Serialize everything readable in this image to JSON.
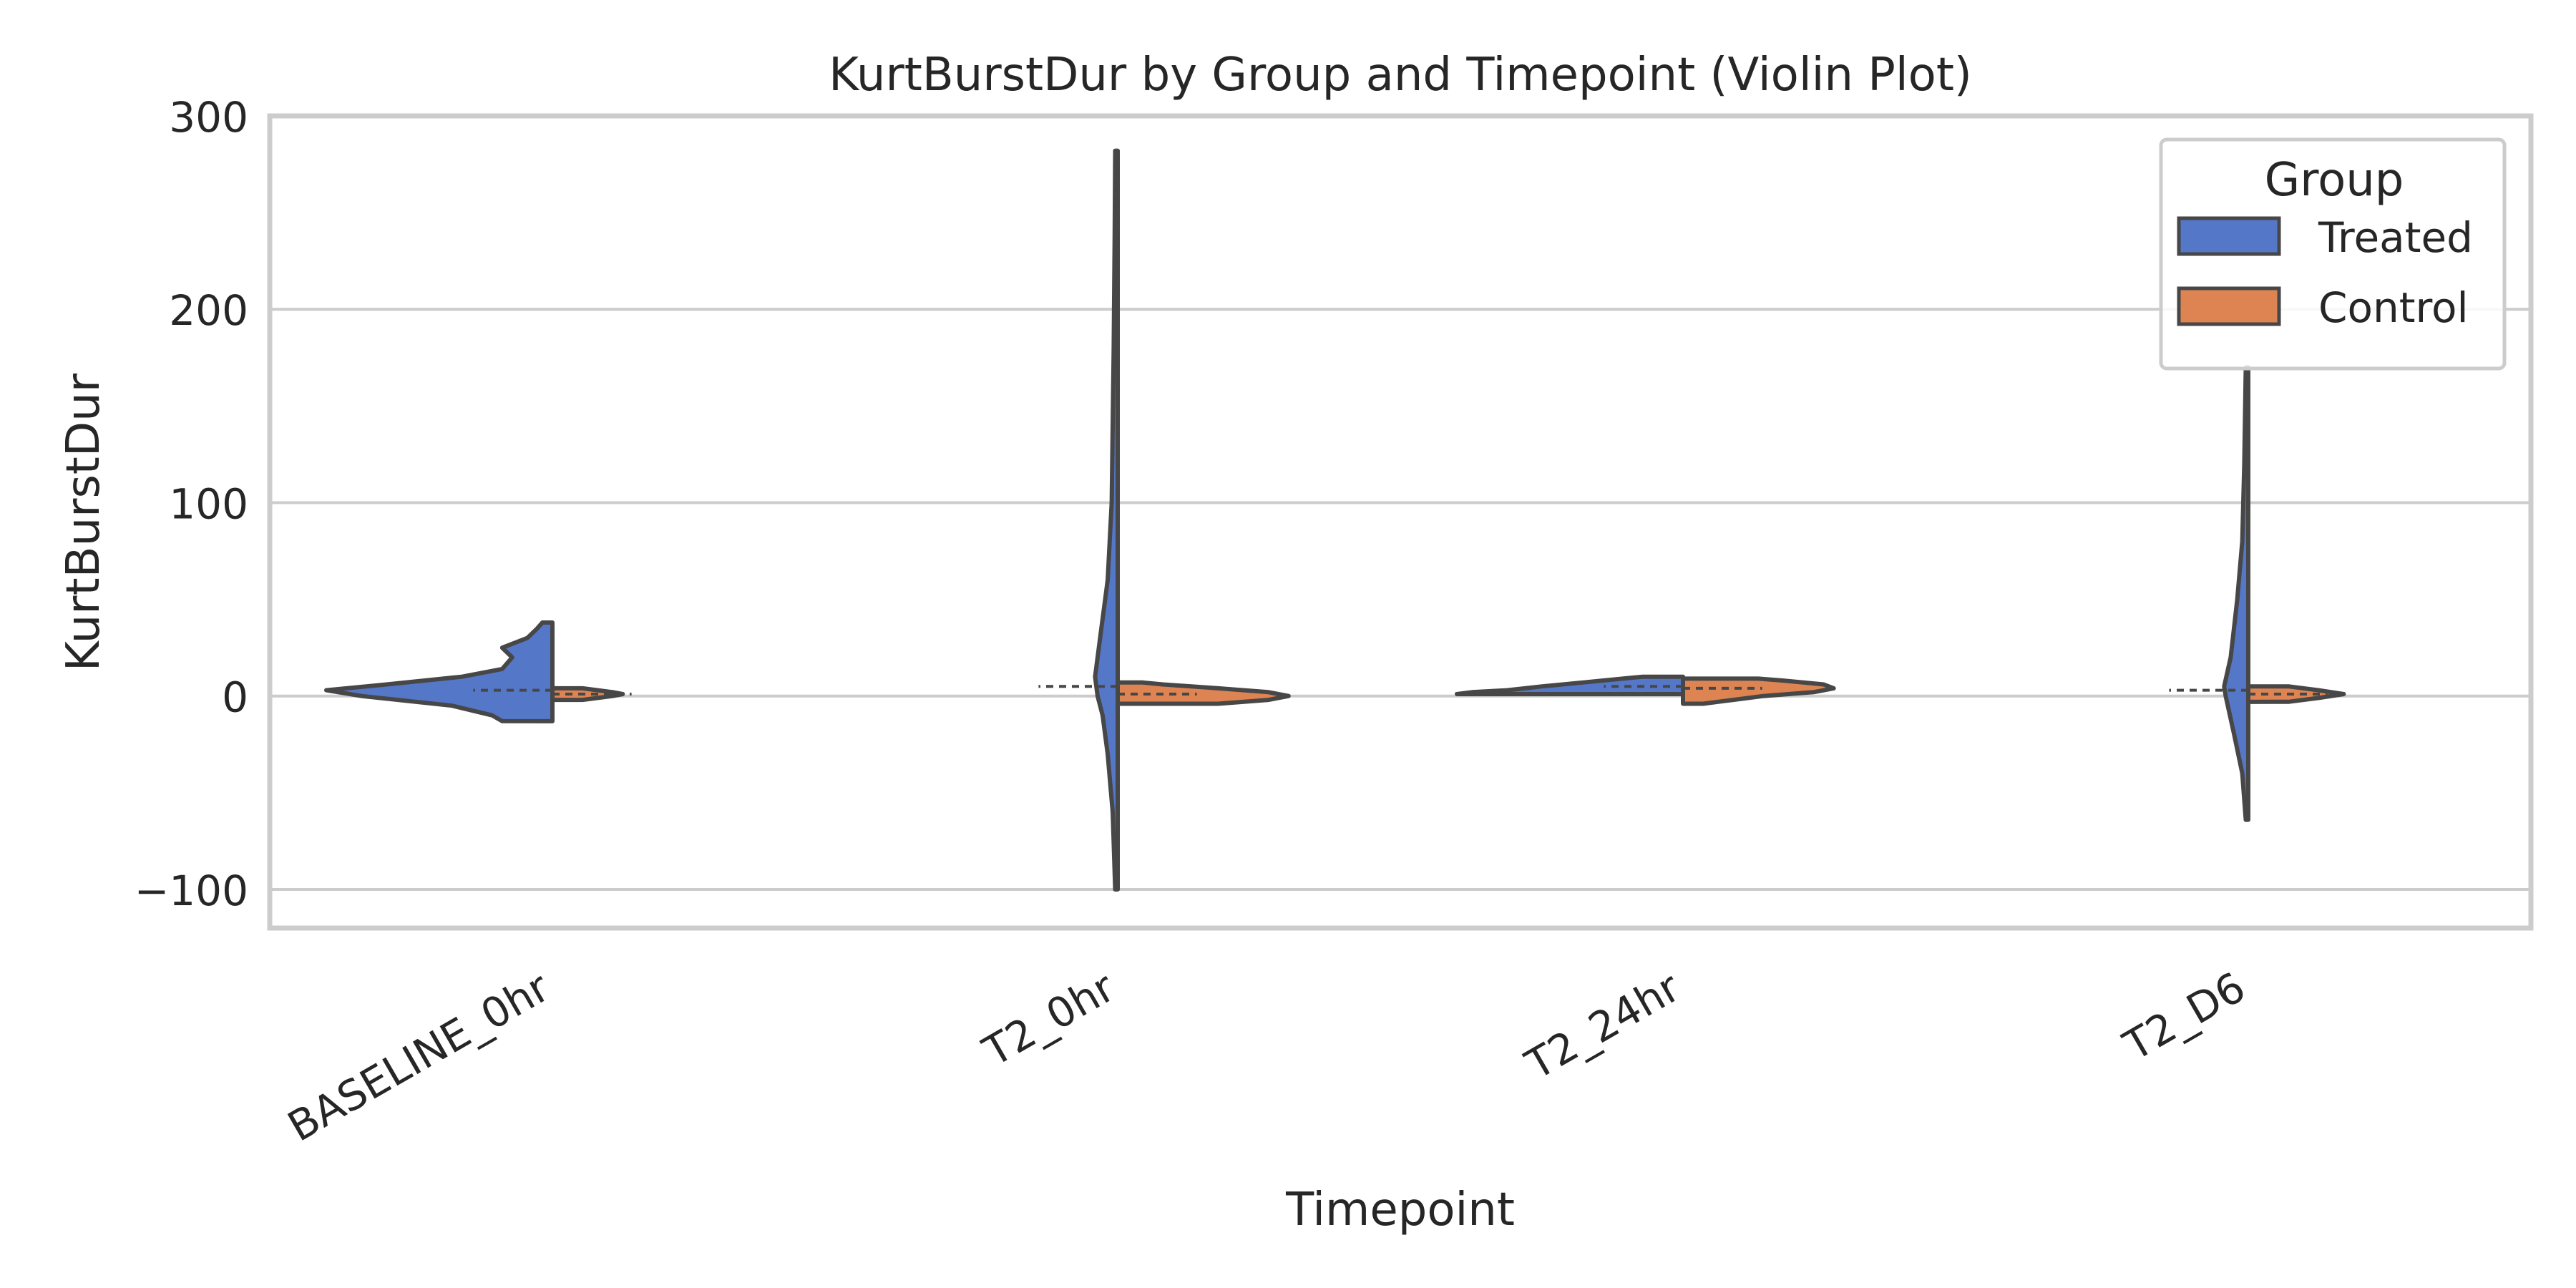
{
  "chart_data": {
    "type": "violin",
    "title": "KurtBurstDur by Group and Timepoint (Violin Plot)",
    "xlabel": "Timepoint",
    "ylabel": "KurtBurstDur",
    "categories": [
      "BASELINE_0hr",
      "T2_0hr",
      "T2_24hr",
      "T2_D6"
    ],
    "ylim": [
      -120,
      300
    ],
    "yticks": [
      -100,
      0,
      100,
      200,
      300
    ],
    "ytick_labels": [
      "−100",
      "0",
      "100",
      "200",
      "300"
    ],
    "grid": "horizontal",
    "legend": {
      "title": "Group",
      "placement": "top-right"
    },
    "series": [
      {
        "name": "Treated",
        "color": "#5577c8",
        "side": "left",
        "violins": [
          {
            "category": "BASELINE_0hr",
            "min": -13,
            "max": 38,
            "median": 3,
            "density": [
              [
                -13,
                0.1
              ],
              [
                -10,
                0.12
              ],
              [
                -5,
                0.2
              ],
              [
                0,
                0.38
              ],
              [
                3,
                0.45
              ],
              [
                6,
                0.33
              ],
              [
                10,
                0.18
              ],
              [
                14,
                0.1
              ],
              [
                20,
                0.08
              ],
              [
                25,
                0.1
              ],
              [
                30,
                0.05
              ],
              [
                35,
                0.03
              ],
              [
                38,
                0.02
              ]
            ]
          },
          {
            "category": "T2_0hr",
            "min": -100,
            "max": 282,
            "median": 5,
            "density": [
              [
                -100,
                0.005
              ],
              [
                -60,
                0.01
              ],
              [
                -30,
                0.02
              ],
              [
                -10,
                0.03
              ],
              [
                0,
                0.04
              ],
              [
                10,
                0.045
              ],
              [
                30,
                0.035
              ],
              [
                60,
                0.02
              ],
              [
                100,
                0.012
              ],
              [
                180,
                0.008
              ],
              [
                240,
                0.006
              ],
              [
                282,
                0.005
              ]
            ]
          },
          {
            "category": "T2_24hr",
            "min": 1,
            "max": 10,
            "median": 5,
            "density": [
              [
                1,
                0.45
              ],
              [
                2,
                0.42
              ],
              [
                3,
                0.35
              ],
              [
                5,
                0.28
              ],
              [
                7,
                0.2
              ],
              [
                9,
                0.12
              ],
              [
                10,
                0.08
              ]
            ]
          },
          {
            "category": "T2_D6",
            "min": -64,
            "max": 170,
            "median": 3,
            "density": [
              [
                -64,
                0.005
              ],
              [
                -40,
                0.012
              ],
              [
                -20,
                0.028
              ],
              [
                0,
                0.045
              ],
              [
                5,
                0.048
              ],
              [
                20,
                0.035
              ],
              [
                50,
                0.022
              ],
              [
                80,
                0.012
              ],
              [
                120,
                0.008
              ],
              [
                170,
                0.005
              ]
            ]
          }
        ]
      },
      {
        "name": "Control",
        "color": "#dd8452",
        "side": "right",
        "violins": [
          {
            "category": "BASELINE_0hr",
            "min": -2,
            "max": 4,
            "median": 1,
            "density": [
              [
                -2,
                0.06
              ],
              [
                -1,
                0.09
              ],
              [
                0,
                0.12
              ],
              [
                1,
                0.14
              ],
              [
                2,
                0.12
              ],
              [
                3,
                0.09
              ],
              [
                4,
                0.06
              ]
            ]
          },
          {
            "category": "T2_0hr",
            "min": -4,
            "max": 7,
            "median": 1,
            "density": [
              [
                -4,
                0.2
              ],
              [
                -2,
                0.3
              ],
              [
                0,
                0.34
              ],
              [
                2,
                0.3
              ],
              [
                4,
                0.2
              ],
              [
                6,
                0.09
              ],
              [
                7,
                0.05
              ]
            ]
          },
          {
            "category": "T2_24hr",
            "min": -4,
            "max": 9,
            "median": 4,
            "density": [
              [
                -4,
                0.04
              ],
              [
                -2,
                0.1
              ],
              [
                0,
                0.16
              ],
              [
                2,
                0.26
              ],
              [
                4,
                0.3
              ],
              [
                6,
                0.28
              ],
              [
                8,
                0.2
              ],
              [
                9,
                0.15
              ]
            ]
          },
          {
            "category": "T2_D6",
            "min": -3,
            "max": 5,
            "median": 1,
            "density": [
              [
                -3,
                0.08
              ],
              [
                -1,
                0.14
              ],
              [
                1,
                0.19
              ],
              [
                3,
                0.14
              ],
              [
                5,
                0.08
              ]
            ]
          }
        ]
      }
    ]
  }
}
